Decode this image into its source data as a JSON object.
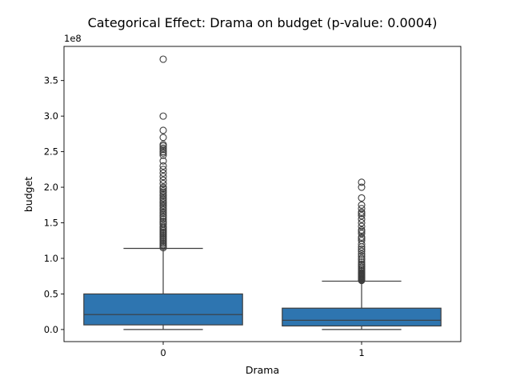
{
  "chart_data": {
    "type": "box",
    "title": "Categorical Effect: Drama on budget (p-value: 0.0004)",
    "xlabel": "Drama",
    "ylabel": "budget",
    "y_offset_label": "1e8",
    "y_scale": 100000000,
    "ylim": [
      -17000000,
      398000000
    ],
    "y_ticks": [
      0,
      50000000,
      100000000,
      150000000,
      200000000,
      250000000,
      300000000,
      350000000
    ],
    "y_tick_labels": [
      "0.0",
      "0.5",
      "1.0",
      "1.5",
      "2.0",
      "2.5",
      "3.0",
      "3.5"
    ],
    "categories": [
      "0",
      "1"
    ],
    "box_color": "#2e75b0",
    "boxes": [
      {
        "category": "0",
        "whisker_low": 0,
        "q1": 6500000,
        "median": 21000000,
        "q3": 50000000,
        "whisker_high": 114000000,
        "outliers": [
          115000000,
          117000000,
          119000000,
          121000000,
          123000000,
          125000000,
          127000000,
          129000000,
          131000000,
          133000000,
          135000000,
          137000000,
          139000000,
          141000000,
          143000000,
          145000000,
          148000000,
          150000000,
          152000000,
          155000000,
          158000000,
          160000000,
          163000000,
          165000000,
          168000000,
          170000000,
          173000000,
          175000000,
          178000000,
          180000000,
          183000000,
          185000000,
          188000000,
          190000000,
          193000000,
          195000000,
          198000000,
          200000000,
          205000000,
          210000000,
          215000000,
          220000000,
          225000000,
          230000000,
          237000000,
          245000000,
          248000000,
          250000000,
          253000000,
          255000000,
          258000000,
          260000000,
          270000000,
          280000000,
          300000000,
          380000000
        ]
      },
      {
        "category": "1",
        "whisker_low": 0,
        "q1": 5000000,
        "median": 13000000,
        "q3": 30000000,
        "whisker_high": 68000000,
        "outliers": [
          69000000,
          70000000,
          71000000,
          72000000,
          73000000,
          74000000,
          75000000,
          76000000,
          77000000,
          78000000,
          79000000,
          80000000,
          82000000,
          84000000,
          86000000,
          88000000,
          90000000,
          92000000,
          95000000,
          98000000,
          100000000,
          103000000,
          106000000,
          110000000,
          113000000,
          116000000,
          120000000,
          125000000,
          128000000,
          130000000,
          135000000,
          138000000,
          140000000,
          145000000,
          150000000,
          155000000,
          160000000,
          163000000,
          165000000,
          170000000,
          175000000,
          185000000,
          200000000,
          207000000
        ]
      }
    ]
  }
}
